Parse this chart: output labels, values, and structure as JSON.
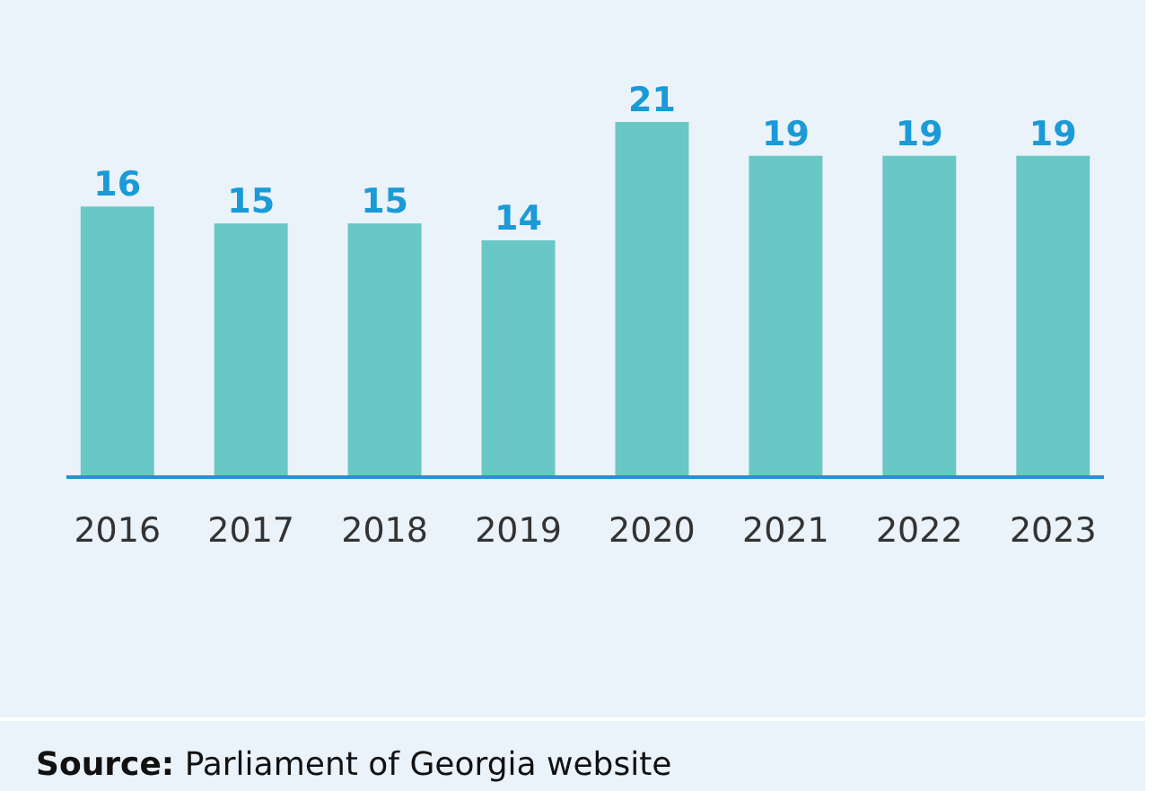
{
  "chart_data": {
    "type": "bar",
    "categories": [
      "2016",
      "2017",
      "2018",
      "2019",
      "2020",
      "2021",
      "2022",
      "2023"
    ],
    "values": [
      16,
      15,
      15,
      14,
      21,
      19,
      19,
      19
    ],
    "color": "#69c7c5",
    "data_labels": true,
    "annotations": [
      "Source: Parliament of Georgia website"
    ]
  }
}
